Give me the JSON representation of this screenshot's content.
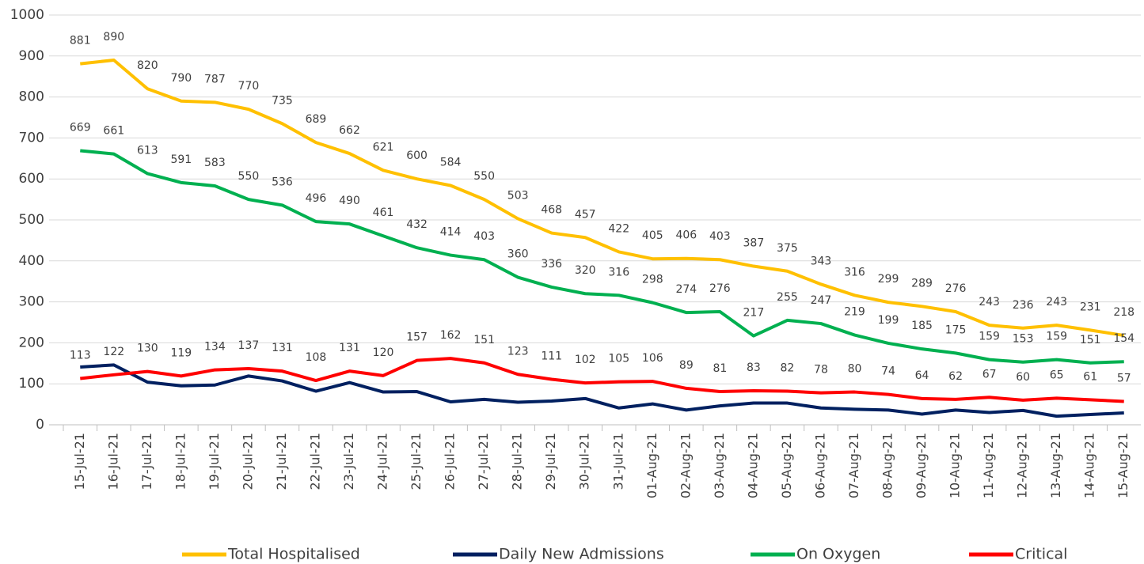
{
  "chart_data": {
    "type": "line",
    "categories": [
      "15-Jul-21",
      "16-Jul-21",
      "17-Jul-21",
      "18-Jul-21",
      "19-Jul-21",
      "20-Jul-21",
      "21-Jul-21",
      "22-Jul-21",
      "23-Jul-21",
      "24-Jul-21",
      "25-Jul-21",
      "26-Jul-21",
      "27-Jul-21",
      "28-Jul-21",
      "29-Jul-21",
      "30-Jul-21",
      "31-Jul-21",
      "01-Aug-21",
      "02-Aug-21",
      "03-Aug-21",
      "04-Aug-21",
      "05-Aug-21",
      "06-Aug-21",
      "07-Aug-21",
      "08-Aug-21",
      "09-Aug-21",
      "10-Aug-21",
      "11-Aug-21",
      "12-Aug-21",
      "13-Aug-21",
      "14-Aug-21",
      "15-Aug-21"
    ],
    "series": [
      {
        "name": "Total Hospitalised",
        "color": "#FFC000",
        "data_labels": true,
        "values": [
          881,
          890,
          820,
          790,
          787,
          770,
          735,
          689,
          662,
          621,
          600,
          584,
          550,
          503,
          468,
          457,
          422,
          405,
          406,
          403,
          387,
          375,
          343,
          316,
          299,
          289,
          276,
          243,
          236,
          243,
          231,
          218
        ]
      },
      {
        "name": "Daily New Admissions",
        "color": "#002060",
        "data_labels": false,
        "values": [
          141,
          146,
          104,
          95,
          97,
          119,
          107,
          82,
          103,
          80,
          81,
          56,
          62,
          55,
          58,
          64,
          41,
          51,
          36,
          46,
          53,
          53,
          41,
          38,
          36,
          26,
          36,
          30,
          35,
          21,
          25,
          29
        ]
      },
      {
        "name": "On Oxygen",
        "color": "#00B050",
        "data_labels": true,
        "values": [
          669,
          661,
          613,
          591,
          583,
          550,
          536,
          496,
          490,
          461,
          432,
          414,
          403,
          360,
          336,
          320,
          316,
          298,
          274,
          276,
          217,
          255,
          247,
          219,
          199,
          185,
          175,
          159,
          153,
          159,
          151,
          154
        ]
      },
      {
        "name": "Critical",
        "color": "#FF0000",
        "data_labels": true,
        "values": [
          113,
          122,
          130,
          119,
          134,
          137,
          131,
          108,
          131,
          120,
          157,
          162,
          151,
          123,
          111,
          102,
          105,
          106,
          89,
          81,
          83,
          82,
          78,
          80,
          74,
          64,
          62,
          67,
          60,
          65,
          61,
          57
        ]
      }
    ],
    "ylim": [
      0,
      1000
    ],
    "yticks": [
      0,
      100,
      200,
      300,
      400,
      500,
      600,
      700,
      800,
      900,
      1000
    ],
    "grid": true,
    "legend": "bottom"
  }
}
